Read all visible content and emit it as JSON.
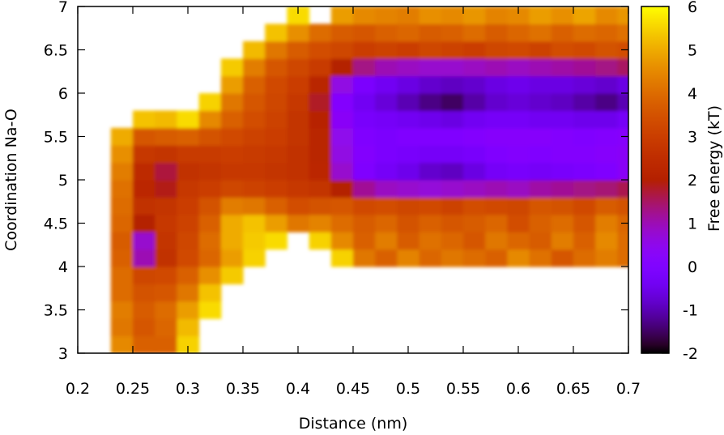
{
  "chart_data": {
    "type": "heatmap",
    "title": "",
    "xlabel": "Distance (nm)",
    "ylabel": "Coordination Na-O",
    "colorbar_label": "Free energy (kT)",
    "xlim": [
      0.2,
      0.7
    ],
    "ylim": [
      3,
      7
    ],
    "zlim": [
      -2,
      6
    ],
    "colormap": "gnuplot (black-purple-red-orange-yellow)",
    "grid": false,
    "legend": "colorbar-right",
    "xticks": [
      "0.2",
      "0.25",
      "0.3",
      "0.35",
      "0.4",
      "0.45",
      "0.5",
      "0.55",
      "0.6",
      "0.65",
      "0.7"
    ],
    "yticks": [
      "3",
      "3.5",
      "4",
      "4.5",
      "5",
      "5.5",
      "6",
      "6.5",
      "7"
    ],
    "zticks": [
      "-2",
      "-1",
      "0",
      "1",
      "2",
      "3",
      "4",
      "5",
      "6"
    ],
    "x": [
      0.24,
      0.26,
      0.28,
      0.3,
      0.32,
      0.34,
      0.36,
      0.38,
      0.4,
      0.42,
      0.44,
      0.46,
      0.48,
      0.5,
      0.52,
      0.54,
      0.56,
      0.58,
      0.6,
      0.62,
      0.64,
      0.66,
      0.68,
      0.7
    ],
    "y": [
      3.1,
      3.3,
      3.5,
      3.7,
      3.9,
      4.1,
      4.3,
      4.5,
      4.7,
      4.9,
      5.1,
      5.3,
      5.5,
      5.7,
      5.9,
      6.1,
      6.3,
      6.5,
      6.7,
      6.9
    ],
    "z": [
      [
        4.5,
        3.8,
        3.8,
        5.5,
        null,
        null,
        null,
        null,
        null,
        null,
        null,
        null,
        null,
        null,
        null,
        null,
        null,
        null,
        null,
        null,
        null,
        null,
        null,
        null
      ],
      [
        4.2,
        3.6,
        3.9,
        5.2,
        null,
        null,
        null,
        null,
        null,
        null,
        null,
        null,
        null,
        null,
        null,
        null,
        null,
        null,
        null,
        null,
        null,
        null,
        null,
        null
      ],
      [
        4.3,
        3.7,
        4.0,
        4.8,
        5.6,
        null,
        null,
        null,
        null,
        null,
        null,
        null,
        null,
        null,
        null,
        null,
        null,
        null,
        null,
        null,
        null,
        null,
        null,
        null
      ],
      [
        4.0,
        3.5,
        3.6,
        4.2,
        5.3,
        null,
        null,
        null,
        null,
        null,
        null,
        null,
        null,
        null,
        null,
        null,
        null,
        null,
        null,
        null,
        null,
        null,
        null,
        null
      ],
      [
        4.0,
        3.2,
        3.3,
        3.8,
        4.6,
        5.4,
        null,
        null,
        null,
        null,
        null,
        null,
        null,
        null,
        null,
        null,
        null,
        null,
        null,
        null,
        null,
        null,
        null,
        null
      ],
      [
        3.8,
        1.0,
        2.6,
        3.3,
        3.9,
        4.8,
        5.5,
        null,
        null,
        null,
        5.5,
        4.2,
        3.8,
        4.4,
        3.9,
        4.2,
        4.0,
        3.8,
        4.5,
        4.1,
        3.6,
        4.0,
        4.3,
        4.0
      ],
      [
        3.7,
        0.8,
        2.7,
        3.2,
        4.0,
        5.0,
        5.4,
        5.6,
        null,
        5.5,
        4.5,
        3.8,
        4.3,
        3.7,
        4.1,
        3.9,
        3.6,
        4.2,
        3.9,
        3.7,
        4.3,
        3.8,
        4.5,
        4.0
      ],
      [
        3.9,
        2.0,
        2.8,
        3.1,
        3.8,
        5.0,
        5.3,
        4.8,
        4.2,
        4.4,
        4.0,
        3.7,
        3.9,
        3.5,
        3.8,
        3.6,
        3.7,
        3.9,
        3.4,
        3.8,
        4.0,
        3.6,
        4.3,
        3.9
      ],
      [
        4.0,
        2.6,
        2.7,
        3.0,
        3.5,
        4.3,
        4.2,
        3.8,
        3.4,
        3.5,
        3.6,
        3.3,
        3.4,
        3.2,
        3.3,
        3.1,
        3.4,
        3.3,
        3.2,
        3.6,
        3.5,
        3.3,
        3.7,
        3.5
      ],
      [
        4.1,
        2.3,
        1.9,
        2.8,
        3.0,
        3.2,
        3.1,
        3.0,
        2.8,
        2.7,
        2.0,
        1.2,
        0.9,
        0.8,
        0.7,
        0.8,
        0.9,
        1.0,
        0.9,
        1.1,
        1.2,
        1.3,
        1.4,
        1.6
      ],
      [
        4.3,
        2.4,
        1.7,
        2.6,
        2.7,
        2.8,
        2.8,
        2.7,
        2.6,
        2.3,
        0.8,
        0.0,
        -0.3,
        -0.5,
        -0.8,
        -0.9,
        -0.6,
        -0.3,
        -0.2,
        -0.3,
        -0.2,
        -0.1,
        0.0,
        0.3
      ],
      [
        4.6,
        2.8,
        2.7,
        2.9,
        2.9,
        3.0,
        2.9,
        2.8,
        2.6,
        2.2,
        0.6,
        0.1,
        -0.1,
        -0.2,
        -0.3,
        -0.3,
        -0.2,
        0.0,
        0.1,
        0.0,
        0.1,
        0.1,
        0.2,
        0.3
      ],
      [
        5.0,
        3.6,
        3.7,
        3.8,
        3.5,
        3.3,
        3.1,
        3.0,
        2.7,
        2.2,
        0.5,
        0.0,
        -0.1,
        0.0,
        0.0,
        0.0,
        0.1,
        0.2,
        0.2,
        0.2,
        0.1,
        0.0,
        0.1,
        0.2
      ],
      [
        null,
        5.3,
        5.2,
        5.6,
        4.5,
        3.8,
        3.4,
        3.1,
        2.7,
        2.1,
        0.3,
        -0.2,
        -0.3,
        -0.4,
        -0.5,
        -0.6,
        -0.4,
        -0.3,
        -0.3,
        -0.4,
        -0.4,
        -0.5,
        -0.5,
        -0.3
      ],
      [
        null,
        null,
        null,
        null,
        5.5,
        4.2,
        3.6,
        3.2,
        2.8,
        1.8,
        0.1,
        -0.4,
        -0.7,
        -1.0,
        -1.3,
        -1.5,
        -1.1,
        -0.8,
        -0.7,
        -0.8,
        -0.9,
        -1.1,
        -1.3,
        -1.0
      ],
      [
        null,
        null,
        null,
        null,
        null,
        4.8,
        3.8,
        3.3,
        3.0,
        2.2,
        0.6,
        -0.1,
        -0.4,
        -0.6,
        -0.8,
        -0.9,
        -0.8,
        -0.6,
        -0.5,
        -0.6,
        -0.6,
        -0.7,
        -0.8,
        -0.6
      ],
      [
        null,
        null,
        null,
        null,
        null,
        5.4,
        4.3,
        3.6,
        3.2,
        2.9,
        2.0,
        1.3,
        1.0,
        0.9,
        0.8,
        0.8,
        0.9,
        1.0,
        0.9,
        1.0,
        1.1,
        1.2,
        1.3,
        1.5
      ],
      [
        null,
        null,
        null,
        null,
        null,
        null,
        5.2,
        4.2,
        3.7,
        3.4,
        3.2,
        3.0,
        3.1,
        3.0,
        3.2,
        3.1,
        3.0,
        3.2,
        3.3,
        3.1,
        3.4,
        3.3,
        3.5,
        3.4
      ],
      [
        null,
        null,
        null,
        null,
        null,
        null,
        null,
        5.3,
        4.6,
        4.0,
        3.7,
        3.6,
        3.8,
        3.9,
        3.7,
        3.8,
        4.0,
        3.7,
        3.9,
        4.1,
        3.8,
        4.0,
        3.9,
        4.1
      ],
      [
        null,
        null,
        null,
        null,
        null,
        null,
        null,
        null,
        5.6,
        null,
        4.8,
        4.5,
        4.4,
        4.3,
        4.6,
        4.5,
        4.7,
        4.4,
        4.5,
        4.8,
        4.6,
        4.9,
        4.5,
        4.7
      ]
    ]
  }
}
